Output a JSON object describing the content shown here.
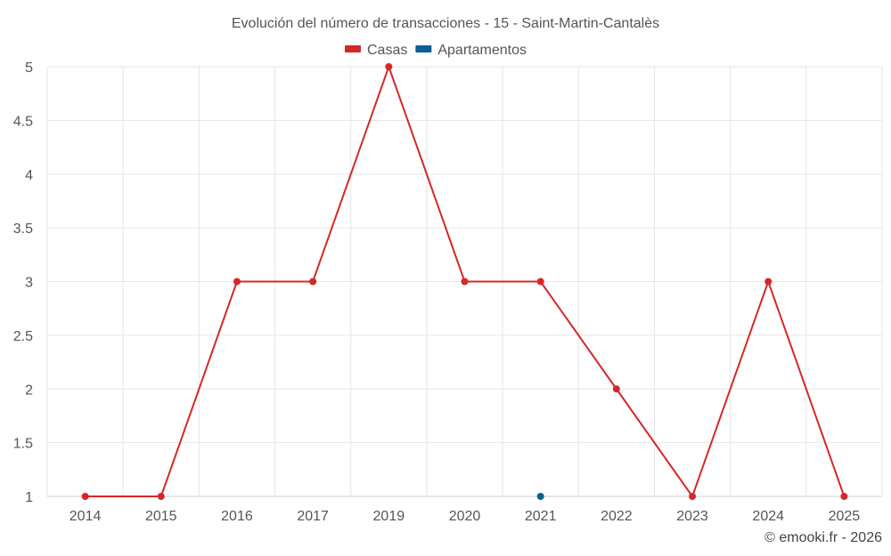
{
  "chart_data": {
    "type": "line",
    "title": "Evolución del número de transacciones - 15 - Saint-Martin-Cantalès",
    "xlabel": "",
    "ylabel": "",
    "categories": [
      "2014",
      "2015",
      "2016",
      "2017",
      "2019",
      "2020",
      "2021",
      "2022",
      "2023",
      "2024",
      "2025"
    ],
    "ylim": [
      1,
      5
    ],
    "yticks": [
      "1",
      "1.5",
      "2",
      "2.5",
      "3",
      "3.5",
      "4",
      "4.5",
      "5"
    ],
    "grid": true,
    "legend_position": "top-center",
    "series": [
      {
        "name": "Casas",
        "color": "#d62728",
        "values": [
          1,
          1,
          3,
          3,
          5,
          3,
          3,
          2,
          1,
          3,
          1
        ]
      },
      {
        "name": "Apartamentos",
        "color": "#0b5f97",
        "values": [
          null,
          null,
          null,
          null,
          null,
          null,
          1,
          null,
          null,
          null,
          null
        ]
      }
    ]
  },
  "credit": "© emooki.fr - 2026"
}
